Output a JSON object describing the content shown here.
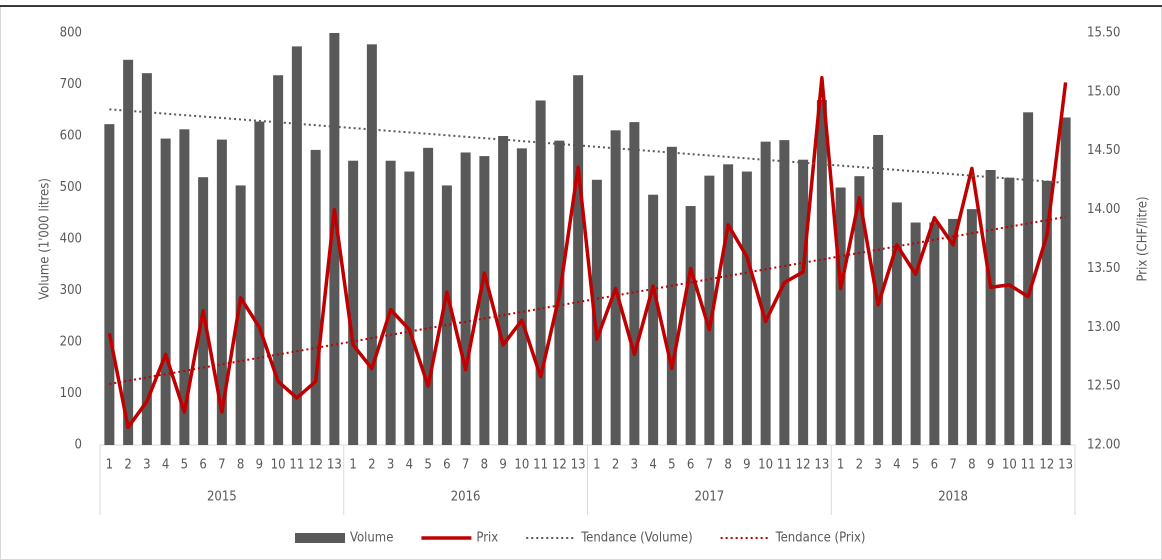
{
  "chart_data": {
    "type": "bar-line",
    "y_label": "Volume (1'000 litres)",
    "y2_label": "Prix (CHF/litre)",
    "categories": [
      "1",
      "2",
      "3",
      "4",
      "5",
      "6",
      "7",
      "8",
      "9",
      "10",
      "11",
      "12",
      "13",
      "1",
      "2",
      "3",
      "4",
      "5",
      "6",
      "7",
      "8",
      "9",
      "10",
      "11",
      "12",
      "13",
      "1",
      "2",
      "3",
      "4",
      "5",
      "6",
      "7",
      "8",
      "9",
      "10",
      "11",
      "12",
      "13",
      "1",
      "2",
      "3",
      "4",
      "5",
      "6",
      "7",
      "8",
      "9",
      "10",
      "11",
      "12",
      "13"
    ],
    "groups": [
      "2015",
      "2016",
      "2017",
      "2018"
    ],
    "series": [
      {
        "name": "Volume",
        "type": "bar",
        "color": "#595959",
        "values": [
          623,
          748,
          722,
          595,
          613,
          520,
          593,
          504,
          628,
          718,
          774,
          573,
          800,
          552,
          778,
          552,
          531,
          577,
          504,
          568,
          561,
          600,
          576,
          669,
          591,
          718,
          515,
          611,
          627,
          486,
          579,
          464,
          523,
          545,
          531,
          589,
          592,
          554,
          670,
          500,
          522,
          602,
          471,
          432,
          432,
          439,
          458,
          534,
          519,
          646,
          513,
          636
        ],
        "trend": {
          "name": "Tendance (Volume)",
          "color": "#595959"
        }
      },
      {
        "name": "Prix",
        "type": "line",
        "axis": "y2",
        "color": "#c00000",
        "values": [
          12.95,
          12.15,
          12.37,
          12.77,
          12.28,
          13.14,
          12.28,
          13.25,
          13.0,
          12.54,
          12.4,
          12.54,
          14.0,
          12.85,
          12.65,
          13.15,
          12.98,
          12.5,
          13.3,
          12.64,
          13.46,
          12.85,
          13.06,
          12.58,
          13.27,
          14.36,
          12.9,
          13.33,
          12.77,
          13.35,
          12.65,
          13.5,
          12.98,
          13.87,
          13.6,
          13.05,
          13.38,
          13.47,
          15.12,
          13.33,
          14.1,
          13.19,
          13.7,
          13.45,
          13.93,
          13.7,
          14.35,
          13.34,
          13.36,
          13.26,
          13.78,
          15.08
        ],
        "trend": {
          "name": "Tendance (Prix)",
          "color": "#c00000"
        }
      }
    ],
    "ylim": [
      0,
      800
    ],
    "yticks": [
      0,
      100,
      200,
      300,
      400,
      500,
      600,
      700,
      800
    ],
    "y2lim": [
      12,
      15.5
    ],
    "y2ticks": [
      {
        "value": 12,
        "label": "12.00"
      },
      {
        "value": 12.5,
        "label": "12.50"
      },
      {
        "value": 13,
        "label": "13.00"
      },
      {
        "value": 13.5,
        "label": "13.50"
      },
      {
        "value": 14,
        "label": "14.00"
      },
      {
        "value": 14.5,
        "label": "14.50"
      },
      {
        "value": 15,
        "label": "15.00"
      },
      {
        "value": 15.5,
        "label": "15.50"
      }
    ],
    "grid": false,
    "legend": "bottom"
  }
}
